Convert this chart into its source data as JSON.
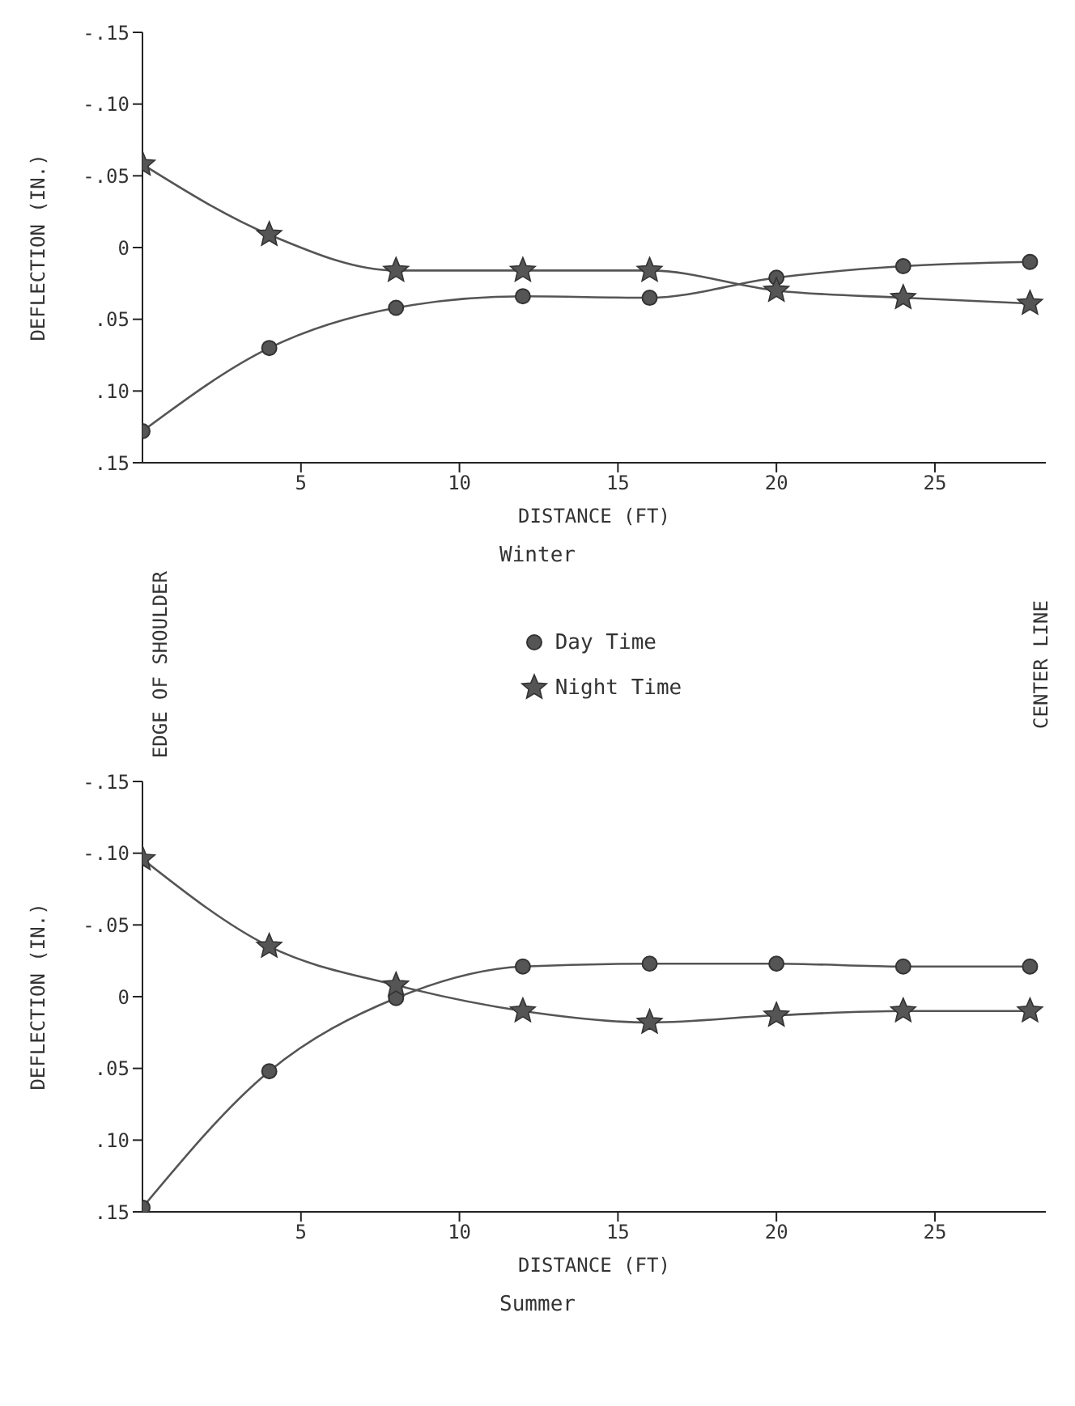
{
  "chart_data": [
    {
      "type": "line",
      "title": "Winter",
      "xlabel": "DISTANCE (FT)",
      "ylabel": "DEFLECTION (IN.)",
      "x": [
        0,
        4,
        8,
        12,
        16,
        20,
        24,
        28
      ],
      "series": [
        {
          "name": "Day Time",
          "color": "#555555",
          "marker": "circle",
          "values": [
            0.128,
            0.07,
            0.042,
            0.034,
            0.035,
            0.021,
            0.013,
            0.01
          ]
        },
        {
          "name": "Night Time",
          "color": "#555555",
          "marker": "star",
          "values": [
            -0.058,
            -0.009,
            0.016,
            0.016,
            0.016,
            0.03,
            0.035,
            0.039
          ]
        }
      ],
      "xlim": [
        0,
        28.5
      ],
      "xticks": [
        5,
        10,
        15,
        20,
        25
      ],
      "ylim": [
        0.15,
        -0.15
      ],
      "yticks": [
        {
          "value": -0.15,
          "label": "-.15"
        },
        {
          "value": -0.1,
          "label": "-.10"
        },
        {
          "value": -0.05,
          "label": "-.05"
        },
        0,
        {
          "value": 0.05,
          "label": ".05"
        },
        {
          "value": 0.1,
          "label": ".10"
        },
        {
          "value": 0.15,
          "label": ".15"
        }
      ],
      "legend": "bottom",
      "annotations": [
        "EDGE OF SHOULDER",
        "CENTER LINE"
      ]
    },
    {
      "type": "line",
      "title": "Summer",
      "xlabel": "DISTANCE (FT)",
      "ylabel": "DEFLECTION (IN.)",
      "x": [
        0,
        4,
        8,
        12,
        16,
        20,
        24,
        28
      ],
      "series": [
        {
          "color": "#555555",
          "marker": "circle",
          "values": [
            0.147,
            0.052,
            0.001,
            -0.021,
            -0.023,
            -0.023,
            -0.021,
            -0.021
          ]
        },
        {
          "color": "#555555",
          "marker": "star",
          "values": [
            -0.096,
            -0.035,
            -0.008,
            0.01,
            0.018,
            0.013,
            0.01,
            0.01
          ]
        }
      ],
      "xlim": [
        0,
        28.5
      ],
      "xticks": [
        5,
        10,
        15,
        20,
        25
      ],
      "ylim": [
        0.15,
        -0.15
      ],
      "yticks": [
        {
          "value": -0.15,
          "label": "-.15"
        },
        {
          "value": -0.1,
          "label": "-.10"
        },
        {
          "value": -0.05,
          "label": "-.05"
        },
        0,
        {
          "value": 0.05,
          "label": ".05"
        },
        {
          "value": 0.1,
          "label": ".10"
        },
        {
          "value": 0.15,
          "label": ".15"
        }
      ],
      "legend": false
    }
  ]
}
